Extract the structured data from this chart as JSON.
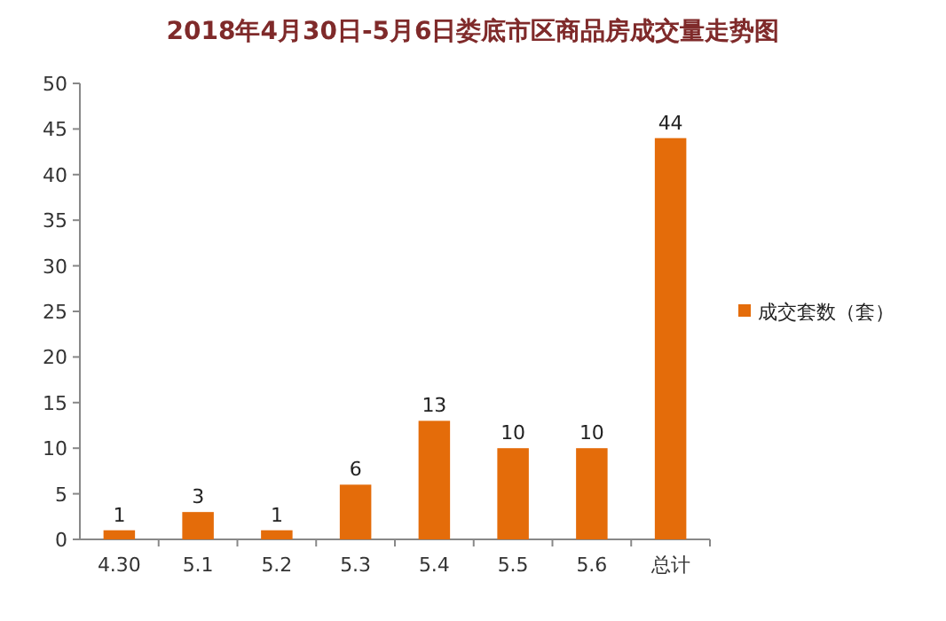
{
  "chart_data": {
    "type": "bar",
    "title": "2018年4月30日-5月6日娄底市区商品房成交量走势图",
    "categories": [
      "4.30",
      "5.1",
      "5.2",
      "5.3",
      "5.4",
      "5.5",
      "5.6",
      "总计"
    ],
    "series": [
      {
        "name": "成交套数（套）",
        "color": "#e46c0a",
        "values": [
          1,
          3,
          1,
          6,
          13,
          10,
          10,
          44
        ]
      }
    ],
    "ylim": [
      0,
      50
    ],
    "yticks": [
      0,
      5,
      10,
      15,
      20,
      25,
      30,
      35,
      40,
      45,
      50
    ],
    "data_labels": true,
    "legend": "right"
  }
}
